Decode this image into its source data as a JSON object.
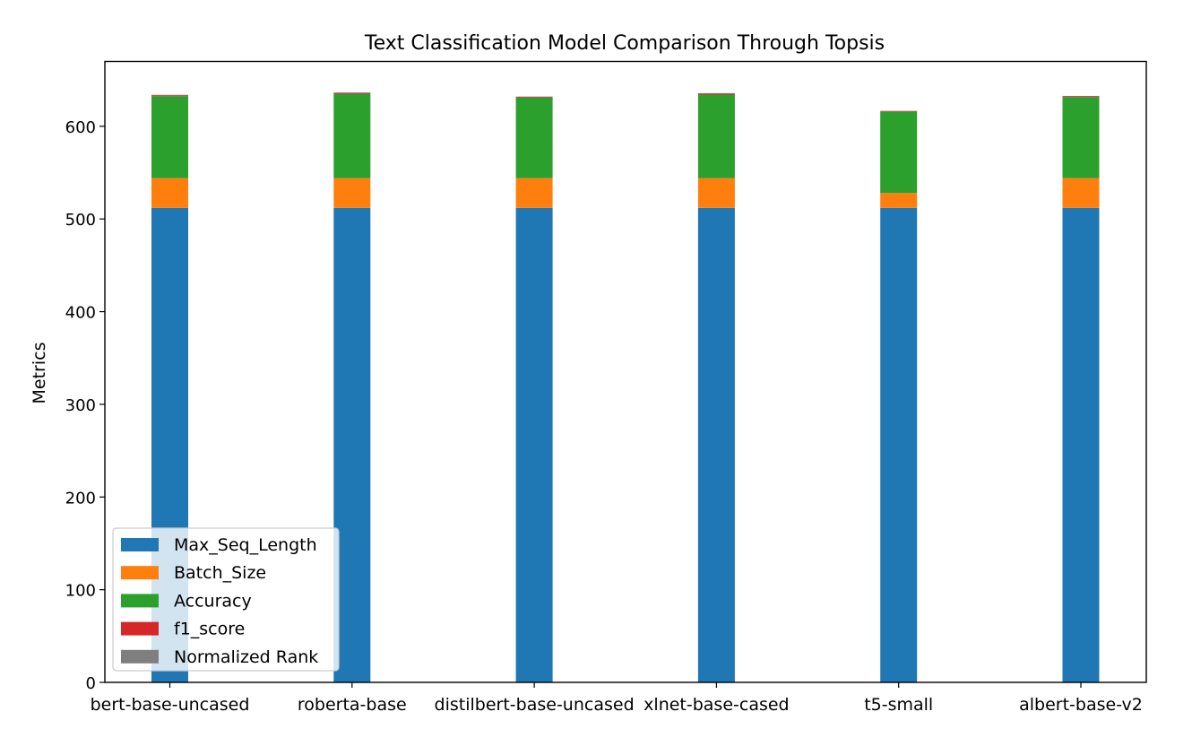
{
  "chart_data": {
    "type": "bar",
    "stacked": true,
    "title": "Text Classification Model Comparison Through Topsis",
    "xlabel": "",
    "ylabel": "Metrics",
    "ylim": [
      0,
      670
    ],
    "yticks": [
      0,
      100,
      200,
      300,
      400,
      500,
      600
    ],
    "grid": false,
    "legend_position": "lower-left",
    "categories": [
      "bert-base-uncased",
      "roberta-base",
      "distilbert-base-uncased",
      "xlnet-base-cased",
      "t5-small",
      "albert-base-v2"
    ],
    "series": [
      {
        "name": "Max_Seq_Length",
        "color": "#1f77b4",
        "values": [
          512,
          512,
          512,
          512,
          512,
          512
        ]
      },
      {
        "name": "Batch_Size",
        "color": "#ff7f0e",
        "values": [
          32,
          32,
          32,
          32,
          16,
          32
        ]
      },
      {
        "name": "Accuracy",
        "color": "#2ca02c",
        "values": [
          88.5,
          90.8,
          86.9,
          90.2,
          87.6,
          87.5
        ]
      },
      {
        "name": "f1_score",
        "color": "#d62728",
        "values": [
          0.88,
          0.91,
          0.87,
          0.9,
          0.87,
          0.88
        ]
      },
      {
        "name": "Normalized Rank",
        "color": "#7f7f7f",
        "values": [
          0.58,
          0.85,
          0.3,
          0.72,
          0.12,
          0.43
        ]
      }
    ]
  }
}
